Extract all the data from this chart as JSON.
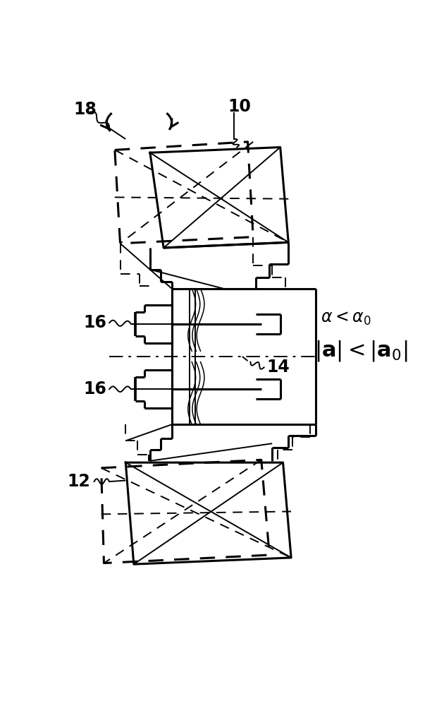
{
  "background": "#ffffff",
  "lc": "#000000",
  "lw": 2.2,
  "lw_t": 1.4,
  "fig_width": 6.13,
  "fig_height": 10.0,
  "dpi": 100
}
